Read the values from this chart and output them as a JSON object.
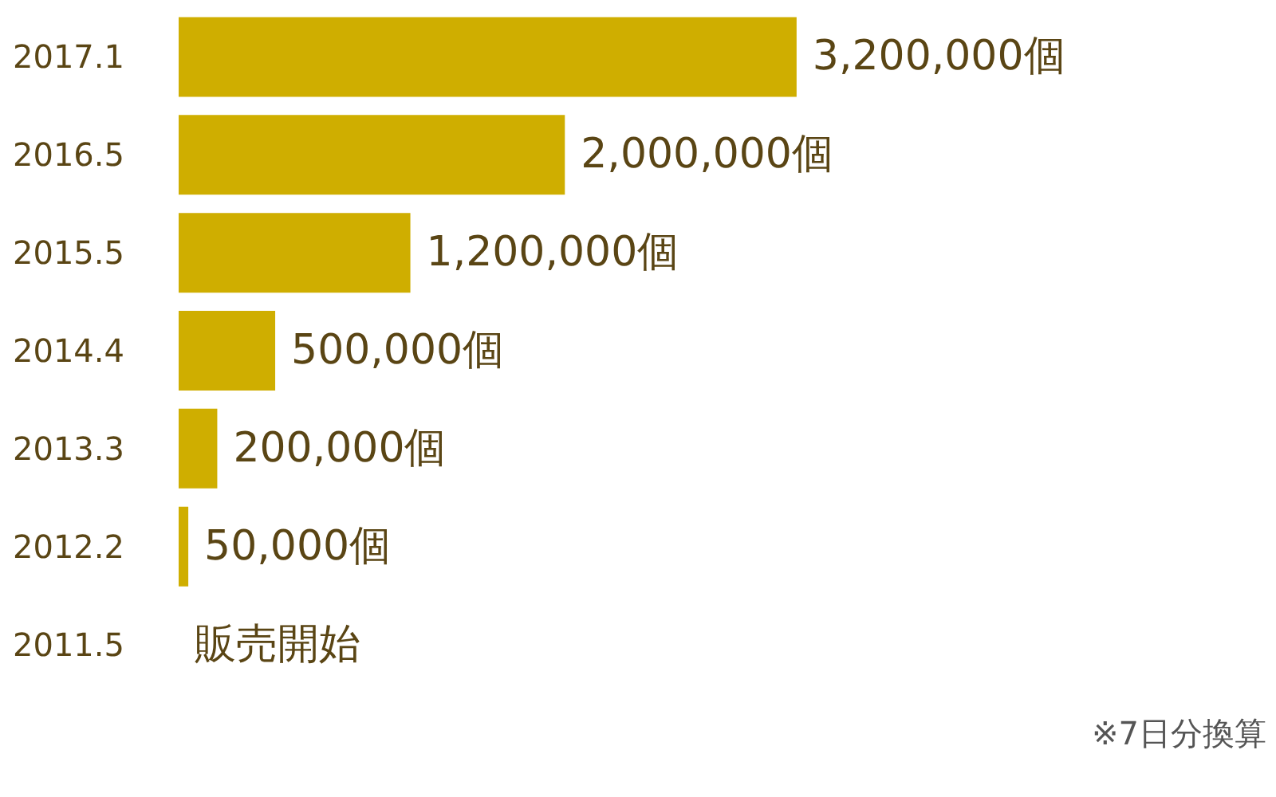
{
  "chart_data": {
    "type": "bar",
    "orientation": "horizontal",
    "categories": [
      "2017.1",
      "2016.5",
      "2015.5",
      "2014.4",
      "2013.3",
      "2012.2",
      "2011.5"
    ],
    "values": [
      3200000,
      2000000,
      1200000,
      500000,
      200000,
      50000,
      0
    ],
    "value_labels": [
      "3,200,000個",
      "2,000,000個",
      "1,200,000個",
      "500,000個",
      "200,000個",
      "50,000個",
      "販売開始"
    ],
    "color": "#cfae00",
    "annotations": [
      "※7日分換算"
    ]
  }
}
